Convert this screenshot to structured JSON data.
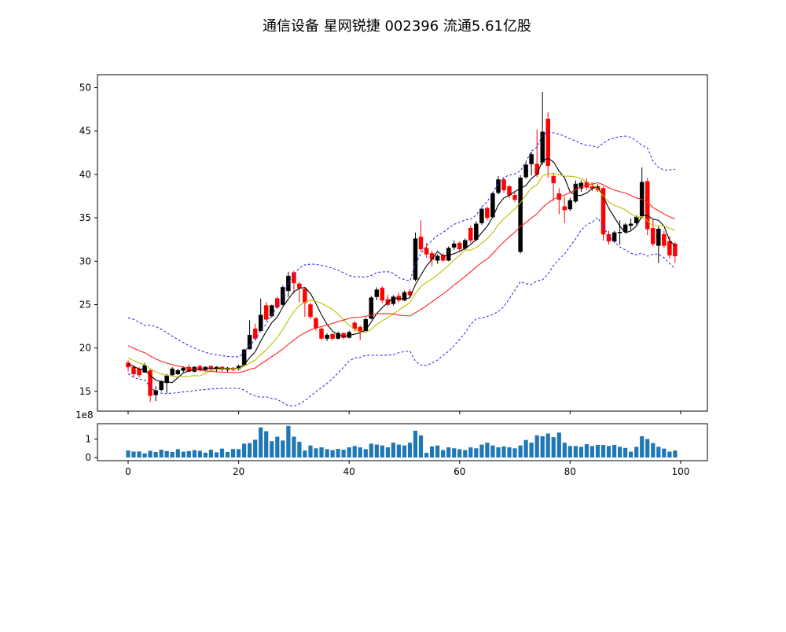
{
  "title": "通信设备 星网锐捷 002396 流通5.61亿股",
  "chart_data": {
    "type": "candlestick",
    "title": "通信设备 星网锐捷 002396 流通5.61亿股",
    "legend": "none",
    "grid": false,
    "x_axis": {
      "ticks": [
        0,
        20,
        40,
        60,
        80,
        100
      ],
      "range": [
        -5.55,
        104.85
      ]
    },
    "price_axis": {
      "ticks": [
        15,
        20,
        25,
        30,
        35,
        40,
        45,
        50
      ],
      "range": [
        12.73,
        51.49
      ]
    },
    "volume_axis": {
      "ticks": [
        0,
        1
      ],
      "offset_label": "1e8",
      "range": [
        -0.17,
        1.83
      ],
      "unit": 100000000
    },
    "colors": {
      "up_candle": "#000000",
      "down_candle": "#ff0000",
      "volume_bar": "#1f77b4",
      "ma5": "#000000",
      "ma10": "#bfbf00",
      "ma20": "#ff2222",
      "bollinger": "#3333ee"
    },
    "overlays": [
      {
        "name": "ma5",
        "kind": "sma",
        "window": 5,
        "k": 0,
        "color": "#000000",
        "dash": "solid"
      },
      {
        "name": "ma10",
        "kind": "sma",
        "window": 10,
        "k": 0,
        "color": "#bfbf00",
        "dash": "solid"
      },
      {
        "name": "ma20",
        "kind": "sma",
        "window": 20,
        "k": 0,
        "color": "#ff2222",
        "dash": "solid"
      },
      {
        "name": "bollinger-upper",
        "kind": "sma",
        "window": 20,
        "k": 2,
        "color": "#3333ee",
        "dash": "dashed"
      },
      {
        "name": "bollinger-lower",
        "kind": "sma",
        "window": 20,
        "k": -2,
        "color": "#3333ee",
        "dash": "dashed"
      }
    ],
    "seed_closes_before_window": [
      23.0,
      22.7,
      22.9,
      22.4,
      22.1,
      21.8,
      21.5,
      21.3,
      21.0,
      20.7,
      20.4,
      20.1,
      19.8,
      19.5,
      19.2,
      18.9,
      18.6,
      18.4,
      18.2,
      18.0
    ],
    "candles_ohlc": [
      [
        18.3,
        18.6,
        17.3,
        17.8
      ],
      [
        17.8,
        18.0,
        16.6,
        17.0
      ],
      [
        17.6,
        17.8,
        16.6,
        16.9
      ],
      [
        17.2,
        18.3,
        17.1,
        18.0
      ],
      [
        17.4,
        17.6,
        13.8,
        14.5
      ],
      [
        14.6,
        15.6,
        13.9,
        15.1
      ],
      [
        15.2,
        16.3,
        15.0,
        16.1
      ],
      [
        16.0,
        17.0,
        14.8,
        16.8
      ],
      [
        16.9,
        17.8,
        16.8,
        17.6
      ],
      [
        17.0,
        17.6,
        16.9,
        17.4
      ],
      [
        17.4,
        17.9,
        17.2,
        17.7
      ],
      [
        17.8,
        18.1,
        17.2,
        17.3
      ],
      [
        17.3,
        17.9,
        17.2,
        17.8
      ],
      [
        17.9,
        18.0,
        17.3,
        17.5
      ],
      [
        17.5,
        17.9,
        17.3,
        17.8
      ],
      [
        17.9,
        18.0,
        17.4,
        17.6
      ],
      [
        17.6,
        17.9,
        17.2,
        17.8
      ],
      [
        17.8,
        17.9,
        17.3,
        17.5
      ],
      [
        17.5,
        17.8,
        17.2,
        17.7
      ],
      [
        17.7,
        17.8,
        17.3,
        17.5
      ],
      [
        17.6,
        18.1,
        17.4,
        17.9
      ],
      [
        18.1,
        19.9,
        18.0,
        19.8
      ],
      [
        19.9,
        23.2,
        19.8,
        21.5
      ],
      [
        22.2,
        22.8,
        20.9,
        21.1
      ],
      [
        22.0,
        25.7,
        21.9,
        23.8
      ],
      [
        24.9,
        25.3,
        23.1,
        23.3
      ],
      [
        23.7,
        25.0,
        23.5,
        24.9
      ],
      [
        25.7,
        25.9,
        24.5,
        24.7
      ],
      [
        25.0,
        27.2,
        24.9,
        27.0
      ],
      [
        26.6,
        28.8,
        25.9,
        28.3
      ],
      [
        28.7,
        28.9,
        26.3,
        27.5
      ],
      [
        27.4,
        27.6,
        25.3,
        26.9
      ],
      [
        26.8,
        27.0,
        23.6,
        25.2
      ],
      [
        25.0,
        25.2,
        23.3,
        23.6
      ],
      [
        23.4,
        23.6,
        22.0,
        22.3
      ],
      [
        22.2,
        22.4,
        20.9,
        21.1
      ],
      [
        21.1,
        21.7,
        20.8,
        21.5
      ],
      [
        21.6,
        21.7,
        20.9,
        21.1
      ],
      [
        21.1,
        21.9,
        21.0,
        21.7
      ],
      [
        21.7,
        21.8,
        21.0,
        21.2
      ],
      [
        21.2,
        22.0,
        21.1,
        21.8
      ],
      [
        22.9,
        23.1,
        21.9,
        22.2
      ],
      [
        22.4,
        22.6,
        20.9,
        21.9
      ],
      [
        22.0,
        23.5,
        21.9,
        23.3
      ],
      [
        23.4,
        26.0,
        23.3,
        25.8
      ],
      [
        25.9,
        27.0,
        25.5,
        26.7
      ],
      [
        26.9,
        27.1,
        25.2,
        25.5
      ],
      [
        25.6,
        26.1,
        24.8,
        25.0
      ],
      [
        25.1,
        26.1,
        24.9,
        25.9
      ],
      [
        26.0,
        26.4,
        25.2,
        25.5
      ],
      [
        25.5,
        26.6,
        25.4,
        26.4
      ],
      [
        26.5,
        26.8,
        25.8,
        26.1
      ],
      [
        27.9,
        33.3,
        27.7,
        32.6
      ],
      [
        32.8,
        34.7,
        31.1,
        31.4
      ],
      [
        31.5,
        32.1,
        30.4,
        30.8
      ],
      [
        30.9,
        31.2,
        29.4,
        30.2
      ],
      [
        30.1,
        30.8,
        29.7,
        30.6
      ],
      [
        30.7,
        30.9,
        29.9,
        30.1
      ],
      [
        30.1,
        31.7,
        30.0,
        31.5
      ],
      [
        31.6,
        32.4,
        31.3,
        32.0
      ],
      [
        32.1,
        32.3,
        31.1,
        31.4
      ],
      [
        31.5,
        32.6,
        31.3,
        32.4
      ],
      [
        33.8,
        34.1,
        32.1,
        32.4
      ],
      [
        32.5,
        34.6,
        32.3,
        34.3
      ],
      [
        34.4,
        36.2,
        34.2,
        36.0
      ],
      [
        36.1,
        36.3,
        34.7,
        35.0
      ],
      [
        35.1,
        38.0,
        35.0,
        37.8
      ],
      [
        37.9,
        39.8,
        37.7,
        39.4
      ],
      [
        39.4,
        39.6,
        37.9,
        38.2
      ],
      [
        38.6,
        38.8,
        37.3,
        37.6
      ],
      [
        37.6,
        38.0,
        36.8,
        37.1
      ],
      [
        31.1,
        39.9,
        30.9,
        39.6
      ],
      [
        39.7,
        41.4,
        39.5,
        41.1
      ],
      [
        41.2,
        42.6,
        39.9,
        42.3
      ],
      [
        41.2,
        45.2,
        39.7,
        40.0
      ],
      [
        41.4,
        49.5,
        41.1,
        44.9
      ],
      [
        46.4,
        47.2,
        39.6,
        41.0
      ],
      [
        39.8,
        40.2,
        36.9,
        39.0
      ],
      [
        37.8,
        38.4,
        35.4,
        37.1
      ],
      [
        36.3,
        37.4,
        34.4,
        35.9
      ],
      [
        36.0,
        37.3,
        35.8,
        37.0
      ],
      [
        36.9,
        39.3,
        36.7,
        38.9
      ],
      [
        38.4,
        39.3,
        38.0,
        39.0
      ],
      [
        39.1,
        39.5,
        38.2,
        38.5
      ],
      [
        38.6,
        39.1,
        38.1,
        38.4
      ],
      [
        38.6,
        38.9,
        38.0,
        38.2
      ],
      [
        38.4,
        38.6,
        32.4,
        33.1
      ],
      [
        33.1,
        33.5,
        31.9,
        32.3
      ],
      [
        32.3,
        33.5,
        32.1,
        33.3
      ],
      [
        33.3,
        34.7,
        31.9,
        33.35
      ],
      [
        33.4,
        34.4,
        33.2,
        34.2
      ],
      [
        34.1,
        34.9,
        33.6,
        34.3
      ],
      [
        34.4,
        35.3,
        34.2,
        35.1
      ],
      [
        35.2,
        40.8,
        35.0,
        39.1
      ],
      [
        39.2,
        39.6,
        33.0,
        33.7
      ],
      [
        33.8,
        34.9,
        31.7,
        32.0
      ],
      [
        31.8,
        34.0,
        29.8,
        33.7
      ],
      [
        33.1,
        33.5,
        31.5,
        31.8
      ],
      [
        32.3,
        32.9,
        30.3,
        30.7
      ],
      [
        32.0,
        32.2,
        29.8,
        30.6
      ]
    ],
    "volumes_1e8": [
      0.38,
      0.32,
      0.33,
      0.22,
      0.36,
      0.3,
      0.42,
      0.35,
      0.3,
      0.45,
      0.32,
      0.35,
      0.4,
      0.36,
      0.26,
      0.42,
      0.28,
      0.48,
      0.3,
      0.46,
      0.45,
      0.75,
      0.78,
      0.96,
      1.63,
      1.42,
      0.88,
      1.13,
      0.92,
      1.71,
      1.13,
      0.85,
      0.38,
      0.65,
      0.5,
      0.55,
      0.45,
      0.4,
      0.47,
      0.42,
      0.55,
      0.62,
      0.55,
      0.45,
      0.75,
      0.7,
      0.65,
      0.55,
      0.8,
      0.7,
      0.65,
      0.8,
      1.45,
      1.2,
      0.25,
      0.6,
      0.65,
      0.4,
      0.55,
      0.5,
      0.45,
      0.4,
      0.55,
      0.5,
      0.7,
      0.8,
      0.65,
      0.55,
      0.6,
      0.55,
      0.5,
      0.65,
      0.95,
      0.8,
      1.2,
      1.15,
      1.3,
      1.1,
      1.35,
      0.8,
      0.62,
      0.62,
      0.58,
      0.72,
      0.62,
      0.68,
      0.68,
      0.62,
      0.68,
      0.58,
      0.52,
      0.32,
      0.58,
      1.15,
      1.0,
      0.78,
      0.58,
      0.48,
      0.32,
      0.38
    ]
  }
}
